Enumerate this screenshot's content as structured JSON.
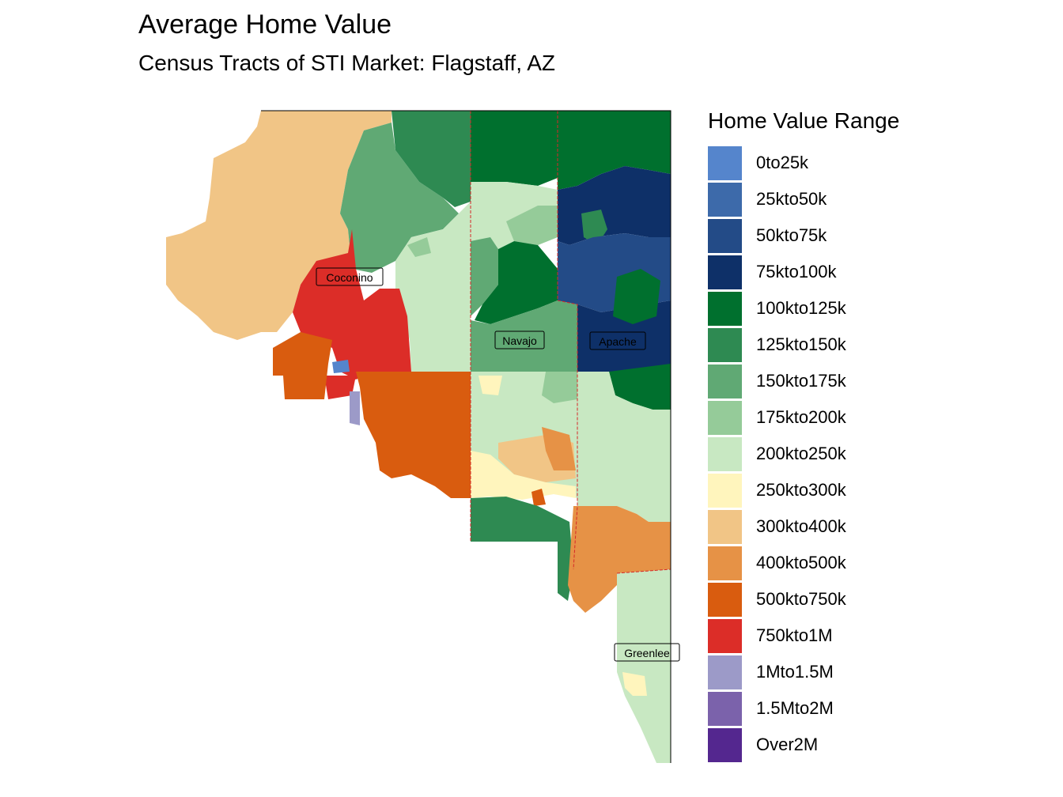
{
  "title": "Average Home Value",
  "subtitle": "Census Tracts of STI Market: Flagstaff, AZ",
  "legend": {
    "title": "Home Value Range",
    "items": [
      {
        "label": "0to25k",
        "color": "#5585cc"
      },
      {
        "label": "25kto50k",
        "color": "#3d6aaa"
      },
      {
        "label": "50kto75k",
        "color": "#234b87"
      },
      {
        "label": "75kto100k",
        "color": "#0e3068"
      },
      {
        "label": "100kto125k",
        "color": "#00702e"
      },
      {
        "label": "125kto150k",
        "color": "#2e8a52"
      },
      {
        "label": "150kto175k",
        "color": "#60a974"
      },
      {
        "label": "175kto200k",
        "color": "#95cb99"
      },
      {
        "label": "200kto250k",
        "color": "#c8e8c2"
      },
      {
        "label": "250kto300k",
        "color": "#fff5bd"
      },
      {
        "label": "300kto400k",
        "color": "#f1c586"
      },
      {
        "label": "400kto500k",
        "color": "#e69246"
      },
      {
        "label": "500kto750k",
        "color": "#d95c0f"
      },
      {
        "label": "750kto1M",
        "color": "#dc2d28"
      },
      {
        "label": "1Mto1.5M",
        "color": "#9c9ac8"
      },
      {
        "label": "1.5Mto2M",
        "color": "#7b62ab"
      },
      {
        "label": "Over2M",
        "color": "#54278f"
      }
    ]
  },
  "counties": [
    {
      "name": "Coconino"
    },
    {
      "name": "Navajo"
    },
    {
      "name": "Apache"
    },
    {
      "name": "Greenlee"
    }
  ]
}
